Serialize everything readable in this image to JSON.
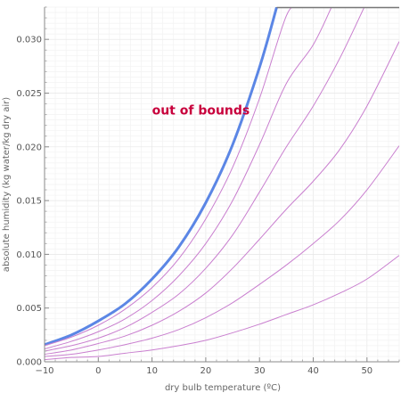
{
  "chart_data": {
    "type": "line",
    "title": "",
    "xlabel": "dry bulb temperature (ºC)",
    "ylabel": "absolute humidity (kg water/kg dry air)",
    "xlim": [
      -10,
      56
    ],
    "ylim": [
      0,
      0.033
    ],
    "grid": true,
    "xticks": [
      {
        "value": -10,
        "label": "−10"
      },
      {
        "value": 0,
        "label": "0"
      },
      {
        "value": 10,
        "label": "10"
      },
      {
        "value": 20,
        "label": "20"
      },
      {
        "value": 30,
        "label": "30"
      },
      {
        "value": 40,
        "label": "40"
      },
      {
        "value": 50,
        "label": "50"
      }
    ],
    "yticks": [
      {
        "value": 0,
        "label": "0.000"
      },
      {
        "value": 0.005,
        "label": "0.005"
      },
      {
        "value": 0.01,
        "label": "0.010"
      },
      {
        "value": 0.015,
        "label": "0.015"
      },
      {
        "value": 0.02,
        "label": "0.020"
      },
      {
        "value": 0.025,
        "label": "0.025"
      },
      {
        "value": 0.03,
        "label": "0.030"
      }
    ],
    "annotation": {
      "text": "out of bounds",
      "x": 10,
      "y": 0.023,
      "color": "#c8003c"
    },
    "saturation_color": "#5b86e5",
    "rh_color": "#c97fcf",
    "series": [
      {
        "rh": 1.0,
        "x": [
          -10,
          -5,
          0,
          5,
          10,
          15,
          20,
          25,
          30,
          33.2
        ],
        "values": [
          0.0016,
          0.0025,
          0.0038,
          0.0054,
          0.0077,
          0.0107,
          0.0148,
          0.0202,
          0.0274,
          0.033
        ]
      },
      {
        "rh": 0.9,
        "x": [
          -10,
          -5,
          0,
          5,
          10,
          15,
          20,
          25,
          30,
          35,
          37.3
        ],
        "values": [
          0.0015,
          0.0023,
          0.0034,
          0.0049,
          0.0069,
          0.0096,
          0.0133,
          0.0181,
          0.0245,
          0.0322,
          0.033
        ]
      },
      {
        "rh": 0.75,
        "x": [
          -10,
          -5,
          0,
          5,
          10,
          15,
          20,
          25,
          30,
          35,
          40,
          43.4
        ],
        "values": [
          0.0012,
          0.0019,
          0.0028,
          0.004,
          0.0057,
          0.008,
          0.011,
          0.015,
          0.0202,
          0.0259,
          0.0295,
          0.033
        ]
      },
      {
        "rh": 0.6,
        "x": [
          -10,
          -5,
          0,
          5,
          10,
          15,
          20,
          25,
          30,
          35,
          40,
          45,
          49.5
        ],
        "values": [
          0.001,
          0.0015,
          0.0022,
          0.0032,
          0.0046,
          0.0063,
          0.0087,
          0.0118,
          0.0158,
          0.02,
          0.0238,
          0.0283,
          0.033
        ]
      },
      {
        "rh": 0.45,
        "x": [
          -10,
          -5,
          0,
          5,
          10,
          15,
          20,
          25,
          30,
          35,
          40,
          45,
          50,
          56
        ],
        "values": [
          0.0007,
          0.0011,
          0.0017,
          0.0024,
          0.0034,
          0.0047,
          0.0064,
          0.0087,
          0.0114,
          0.0142,
          0.0168,
          0.0198,
          0.0238,
          0.0298
        ]
      },
      {
        "rh": 0.3,
        "x": [
          -10,
          -5,
          0,
          5,
          10,
          15,
          20,
          25,
          30,
          35,
          40,
          45,
          50,
          56
        ],
        "values": [
          0.0005,
          0.0007,
          0.0011,
          0.0016,
          0.0022,
          0.003,
          0.0041,
          0.0055,
          0.0072,
          0.009,
          0.011,
          0.0132,
          0.016,
          0.0201
        ]
      },
      {
        "rh": 0.15,
        "x": [
          -10,
          -5,
          0,
          5,
          10,
          15,
          20,
          25,
          30,
          35,
          40,
          45,
          50,
          56
        ],
        "values": [
          0.0002,
          0.0004,
          0.0005,
          0.0008,
          0.0011,
          0.0015,
          0.002,
          0.0027,
          0.0035,
          0.0044,
          0.0053,
          0.0064,
          0.0077,
          0.0099
        ]
      }
    ]
  }
}
